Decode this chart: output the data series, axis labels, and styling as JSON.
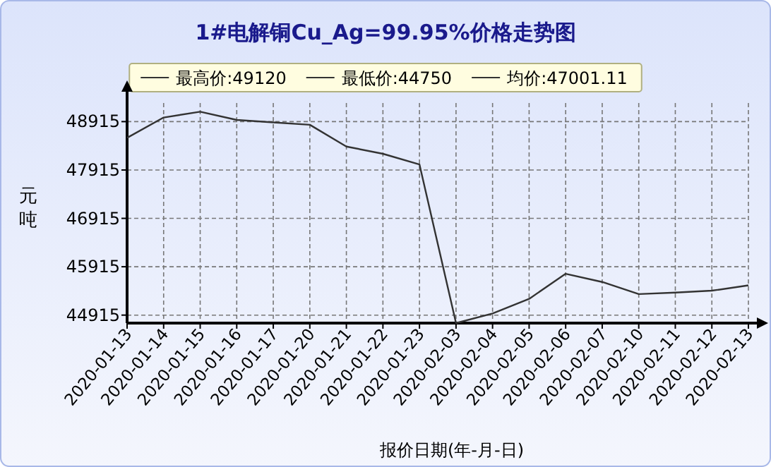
{
  "chart_data": {
    "type": "line",
    "title": "1#电解铜Cu_Ag=99.95%价格走势图",
    "xlabel": "报价日期(年-月-日)",
    "ylabel": "元吨",
    "annotations": [
      "最高价:49120",
      "最低价:44750",
      "均价:47001.11"
    ],
    "categories": [
      "2020-01-13",
      "2020-01-14",
      "2020-01-15",
      "2020-01-16",
      "2020-01-17",
      "2020-01-20",
      "2020-01-21",
      "2020-01-22",
      "2020-01-23",
      "2020-02-03",
      "2020-02-04",
      "2020-02-05",
      "2020-02-06",
      "2020-02-07",
      "2020-02-10",
      "2020-02-11",
      "2020-02-12",
      "2020-02-13"
    ],
    "series": [
      {
        "color": "#333333",
        "values": [
          48580,
          49000,
          49120,
          48950,
          48900,
          48850,
          48400,
          48250,
          48030,
          44750,
          44950,
          45250,
          45770,
          45600,
          45350,
          45380,
          45420,
          45530
        ]
      }
    ],
    "ylim": [
      44750,
      49300
    ],
    "yticks": [
      44915,
      45915,
      46915,
      47915,
      48915
    ],
    "grid": true,
    "marker": "none",
    "line_style": "solid"
  }
}
